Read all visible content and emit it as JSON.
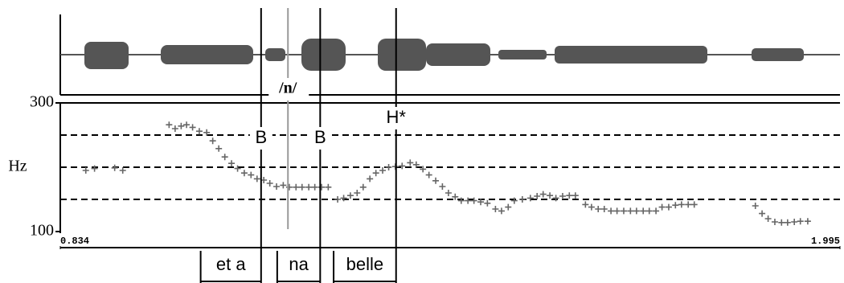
{
  "chart_data": {
    "type": "scatter",
    "y_label": "Hz",
    "xlim": [
      0.834,
      1.995
    ],
    "xticks": [
      {
        "value": 0.834,
        "label": "0.834"
      },
      {
        "value": 1.995,
        "label": "1.995"
      }
    ],
    "ylim": [
      100,
      300
    ],
    "yticks": [
      100,
      300
    ],
    "grid_lines": [
      150,
      200,
      250
    ],
    "color": "#666666",
    "x": [
      0.872,
      0.885,
      0.915,
      0.927,
      0.996,
      1.005,
      1.014,
      1.022,
      1.031,
      1.041,
      1.052,
      1.061,
      1.07,
      1.079,
      1.089,
      1.098,
      1.108,
      1.118,
      1.127,
      1.137,
      1.146,
      1.156,
      1.166,
      1.175,
      1.185,
      1.194,
      1.204,
      1.213,
      1.223,
      1.233,
      1.247,
      1.256,
      1.266,
      1.276,
      1.285,
      1.295,
      1.304,
      1.314,
      1.323,
      1.333,
      1.343,
      1.355,
      1.364,
      1.374,
      1.383,
      1.393,
      1.403,
      1.412,
      1.422,
      1.431,
      1.441,
      1.45,
      1.46,
      1.47,
      1.482,
      1.491,
      1.501,
      1.51,
      1.522,
      1.534,
      1.544,
      1.553,
      1.563,
      1.572,
      1.582,
      1.592,
      1.601,
      1.616,
      1.625,
      1.635,
      1.644,
      1.654,
      1.663,
      1.673,
      1.683,
      1.692,
      1.702,
      1.711,
      1.721,
      1.73,
      1.74,
      1.75,
      1.759,
      1.769,
      1.778,
      1.869,
      1.879,
      1.888,
      1.898,
      1.908,
      1.917,
      1.927,
      1.936,
      1.947
    ],
    "values": [
      195,
      198,
      199,
      195,
      266,
      260,
      264,
      266,
      262,
      256,
      254,
      241,
      229,
      216,
      206,
      198,
      191,
      188,
      182,
      180,
      175,
      170,
      172,
      169,
      169,
      169,
      169,
      169,
      169,
      169,
      150,
      152,
      156,
      160,
      169,
      182,
      191,
      195,
      200,
      201,
      202,
      207,
      204,
      197,
      188,
      179,
      170,
      160,
      154,
      148,
      148,
      148,
      146,
      144,
      135,
      132,
      138,
      148,
      150,
      152,
      155,
      158,
      156,
      152,
      155,
      156,
      156,
      142,
      138,
      135,
      135,
      132,
      132,
      132,
      132,
      132,
      132,
      132,
      132,
      138,
      138,
      141,
      142,
      142,
      142,
      140,
      128,
      120,
      115,
      114,
      114,
      115,
      116,
      116
    ],
    "tones": [
      {
        "label": "B",
        "x": 1.133
      },
      {
        "label": "B",
        "x": 1.221
      },
      {
        "label": "H*",
        "x": 1.334
      }
    ],
    "phoneme": {
      "label": "/n/",
      "x": 1.173
    },
    "segments": [
      {
        "label": "et a",
        "start": 1.043,
        "end": 1.133
      },
      {
        "label": "na",
        "start": 1.157,
        "end": 1.221
      },
      {
        "label": "belle",
        "start": 1.241,
        "end": 1.334
      }
    ]
  }
}
